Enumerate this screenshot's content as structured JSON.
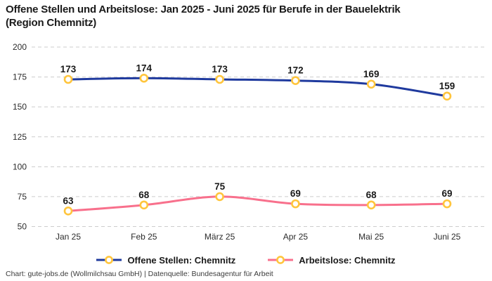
{
  "header": {
    "title_lines": [
      "Offene Stellen und Arbeitslose: Jan 2025 - Juni 2025 für Berufe in der Bauelektrik",
      "(Region Chemnitz)"
    ]
  },
  "chart_data": {
    "type": "line",
    "categories": [
      "Jan 25",
      "Feb 25",
      "März 25",
      "Apr 25",
      "Mai 25",
      "Juni 25"
    ],
    "series": [
      {
        "name": "Offene Stellen: Chemnitz",
        "values": [
          173,
          174,
          173,
          172,
          169,
          159
        ],
        "color": "#1f3a9e"
      },
      {
        "name": "Arbeitslose: Chemnitz",
        "values": [
          63,
          68,
          75,
          69,
          68,
          69
        ],
        "color": "#f8708c"
      }
    ],
    "marker_color": "#ffc53d",
    "marker_fill": "#ffffff",
    "yticks": [
      50,
      75,
      100,
      125,
      150,
      175,
      200
    ],
    "ylim": [
      50,
      200
    ],
    "grid": "dashed-horizontal",
    "grid_color": "#cccccc",
    "tick_label_color": "#2b2b2b",
    "data_label_color": "#1a1a1a",
    "legend_position": "bottom",
    "show_data_labels": true
  },
  "footer": {
    "credit": "Chart: gute-jobs.de (Wollmilchsau GmbH) | Datenquelle: Bundesagentur für Arbeit"
  }
}
